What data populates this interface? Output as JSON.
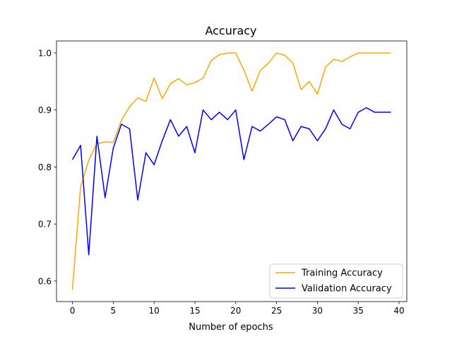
{
  "chart_data": {
    "type": "line",
    "title": "Accuracy",
    "xlabel": "Number of epochs",
    "ylabel": "",
    "xlim": [
      -1.95,
      40.95
    ],
    "ylim": [
      0.564,
      1.021
    ],
    "xticks": [
      0,
      5,
      10,
      15,
      20,
      25,
      30,
      35,
      40
    ],
    "yticks": [
      0.6,
      0.7,
      0.8,
      0.9,
      1.0
    ],
    "ytick_labels": [
      "0.6",
      "0.7",
      "0.8",
      "0.9",
      "1.0"
    ],
    "grid": false,
    "legend_position": "lower-right",
    "x": [
      0,
      1,
      2,
      3,
      4,
      5,
      6,
      7,
      8,
      9,
      10,
      11,
      12,
      13,
      14,
      15,
      16,
      17,
      18,
      19,
      20,
      21,
      22,
      23,
      24,
      25,
      26,
      27,
      28,
      29,
      30,
      31,
      32,
      33,
      34,
      35,
      36,
      37,
      38,
      39
    ],
    "series": [
      {
        "name": "Training Accuracy",
        "color": "#ffa500",
        "values": [
          0.585,
          0.765,
          0.812,
          0.841,
          0.844,
          0.843,
          0.882,
          0.906,
          0.921,
          0.915,
          0.956,
          0.92,
          0.946,
          0.955,
          0.944,
          0.948,
          0.956,
          0.987,
          0.997,
          1.0,
          1.0,
          0.97,
          0.933,
          0.969,
          0.982,
          1.0,
          0.996,
          0.982,
          0.936,
          0.95,
          0.928,
          0.975,
          0.989,
          0.985,
          0.993,
          1.0,
          1.0,
          1.0,
          1.0,
          1.0
        ]
      },
      {
        "name": "Validation Accuracy",
        "color": "#0000ff",
        "values": [
          0.813,
          0.838,
          0.646,
          0.854,
          0.746,
          0.833,
          0.875,
          0.867,
          0.742,
          0.825,
          0.804,
          0.846,
          0.883,
          0.854,
          0.871,
          0.825,
          0.9,
          0.883,
          0.896,
          0.883,
          0.9,
          0.813,
          0.871,
          0.863,
          0.875,
          0.888,
          0.883,
          0.846,
          0.871,
          0.867,
          0.846,
          0.867,
          0.9,
          0.875,
          0.867,
          0.896,
          0.904,
          0.896,
          0.896,
          0.896
        ]
      }
    ]
  }
}
